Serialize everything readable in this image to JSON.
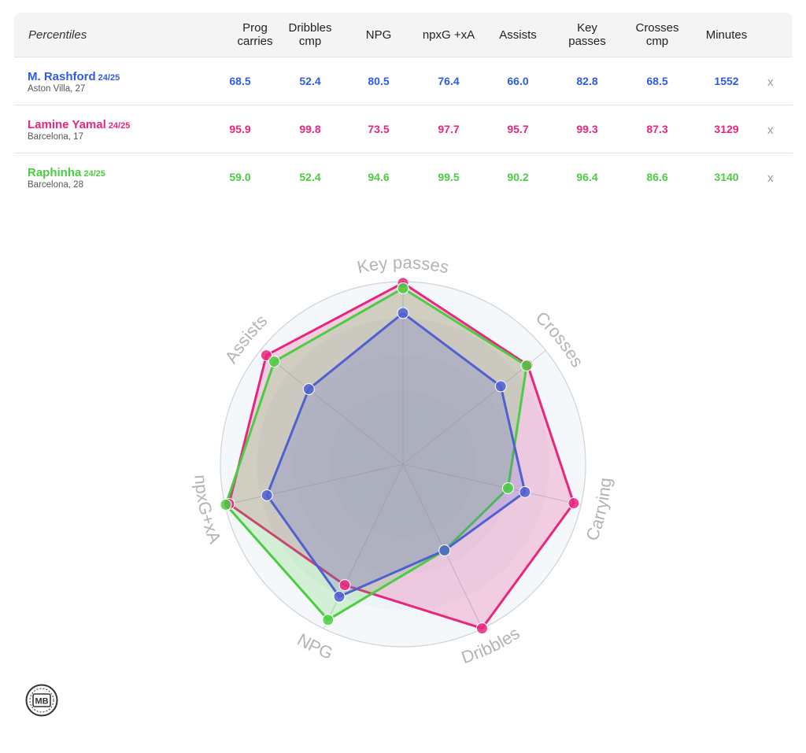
{
  "table": {
    "corner_label": "Percentiles",
    "columns": [
      "Prog\ncarries",
      "Dribbles\ncmp",
      "NPG",
      "npxG +xA",
      "Assists",
      "Key\npasses",
      "Crosses\ncmp",
      "Minutes"
    ],
    "remove_label": "x",
    "players": [
      {
        "name": "M. Rashford",
        "season": "24/25",
        "club_age": "Aston Villa, 27",
        "color": "#2f5be0",
        "values": [
          "68.5",
          "52.4",
          "80.5",
          "76.4",
          "66.0",
          "82.8",
          "68.5",
          "1552"
        ]
      },
      {
        "name": "Lamine Yamal",
        "season": "24/25",
        "club_age": "Barcelona, 17",
        "color": "#e8257f",
        "values": [
          "95.9",
          "99.8",
          "73.5",
          "97.7",
          "95.7",
          "99.3",
          "87.3",
          "3129"
        ]
      },
      {
        "name": "Raphinha",
        "season": "24/25",
        "club_age": "Barcelona, 28",
        "color": "#4ccc42",
        "values": [
          "59.0",
          "52.4",
          "94.6",
          "99.5",
          "90.2",
          "96.4",
          "86.6",
          "3140"
        ]
      }
    ]
  },
  "chart_data": {
    "type": "radar",
    "axes": [
      "Key passes",
      "Crosses",
      "Carrying",
      "Dribbles",
      "NPG",
      "npxG+xA",
      "Assists"
    ],
    "range": [
      0,
      100
    ],
    "series": [
      {
        "name": "Lamine Yamal",
        "color": "#e8257f",
        "values": [
          99.3,
          87.3,
          95.9,
          99.8,
          73.5,
          97.7,
          95.7
        ]
      },
      {
        "name": "Raphinha",
        "color": "#4ccc42",
        "values": [
          96.4,
          86.6,
          59.0,
          52.4,
          94.6,
          99.5,
          90.2
        ]
      },
      {
        "name": "M. Rashford",
        "color": "#5060d0",
        "values": [
          82.8,
          68.5,
          68.5,
          52.4,
          80.5,
          76.4,
          66.0
        ]
      }
    ]
  },
  "logo": {
    "text": "MB"
  }
}
